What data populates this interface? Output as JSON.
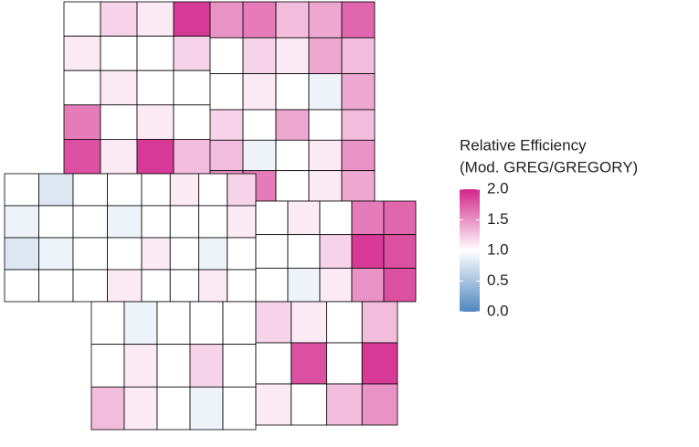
{
  "chart_data": {
    "type": "choropleth",
    "legend_title": [
      "Relative Efficiency",
      "(Mod. GREG/GREGORY)"
    ],
    "values": [
      1.0,
      1.2,
      1.1,
      1.9,
      1.1,
      1.0,
      1.0,
      1.2,
      1.0,
      1.1,
      1.0,
      1.0,
      1.6,
      1.0,
      1.1,
      1.0,
      1.8,
      1.1,
      1.9,
      1.3,
      1.5,
      1.6,
      1.3,
      1.4,
      1.7,
      1.0,
      1.2,
      1.1,
      1.4,
      1.3,
      1.0,
      1.1,
      1.0,
      0.9,
      1.4,
      1.2,
      1.0,
      1.4,
      1.0,
      1.3,
      1.3,
      0.9,
      1.0,
      1.1,
      1.5,
      1.5,
      1.6,
      1.0,
      1.1,
      1.4,
      1.0,
      0.8,
      1.0,
      1.0,
      0.9,
      1.0,
      1.0,
      0.9,
      0.8,
      0.9,
      1.0,
      1.0,
      1.0,
      1.0,
      1.0,
      1.1,
      1.0,
      1.1,
      1.0,
      1.2,
      1.0,
      1.0,
      1.0,
      1.1,
      1.1,
      1.0,
      0.9,
      1.0,
      1.0,
      1.0,
      1.1,
      1.0,
      1.0,
      1.1,
      1.0,
      1.6,
      1.7,
      1.0,
      1.0,
      1.2,
      1.9,
      1.8,
      1.0,
      0.9,
      1.1,
      1.5,
      1.8,
      1.0,
      0.9,
      1.0,
      1.0,
      1.0,
      1.0,
      1.1,
      1.0,
      1.2,
      1.0,
      1.3,
      1.1,
      1.0,
      0.9,
      1.0,
      1.2,
      1.1,
      1.0,
      1.3,
      1.0,
      1.8,
      1.0,
      1.9,
      1.1,
      1.0,
      1.3,
      1.5
    ],
    "colorbar_lim": [
      0,
      2
    ],
    "colorbar_ticks": [
      {
        "value": 0,
        "label": "0.0"
      },
      {
        "value": 0.5,
        "label": "0.5"
      },
      {
        "value": 1,
        "label": "1.0"
      },
      {
        "value": 1.5,
        "label": "1.5"
      },
      {
        "value": 2,
        "label": "2.0"
      }
    ],
    "low_color": "#4f86c0",
    "mid_color": "#ffffff",
    "high_color": "#d3248a"
  }
}
